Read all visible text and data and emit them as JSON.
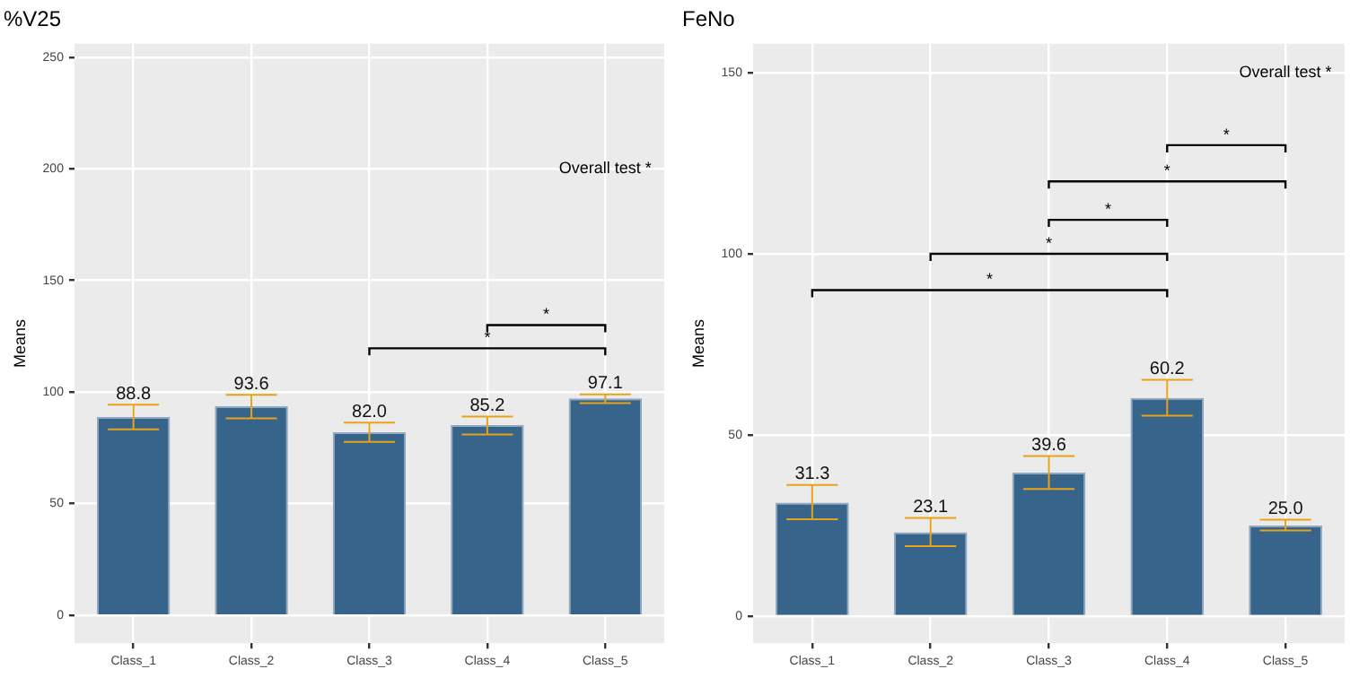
{
  "chart_data": [
    {
      "type": "bar",
      "title": "%V25",
      "ylabel": "Means",
      "categories": [
        "Class_1",
        "Class_2",
        "Class_3",
        "Class_4",
        "Class_5"
      ],
      "values": [
        88.8,
        93.6,
        82.0,
        85.2,
        97.1
      ],
      "value_labels": [
        "88.8",
        "93.6",
        "82.0",
        "85.2",
        "97.1"
      ],
      "errors": [
        [
          83.3,
          94.3
        ],
        [
          88.2,
          98.8
        ],
        [
          77.7,
          86.3
        ],
        [
          81.0,
          89.0
        ],
        [
          95.0,
          99.0
        ]
      ],
      "color": "#36648b",
      "ylim": [
        -12.5,
        256
      ],
      "yticks": [
        0,
        50,
        100,
        150,
        200,
        250
      ],
      "grid": true,
      "legend": false,
      "annotations": [
        "Overall test *",
        "*",
        "*"
      ]
    },
    {
      "type": "bar",
      "title": "FeNo",
      "ylabel": "Means",
      "categories": [
        "Class_1",
        "Class_2",
        "Class_3",
        "Class_4",
        "Class_5"
      ],
      "values": [
        31.3,
        23.1,
        39.6,
        60.2,
        25.0
      ],
      "value_labels": [
        "31.3",
        "23.1",
        "39.6",
        "60.2",
        "25.0"
      ],
      "errors": [
        [
          26.7,
          36.2
        ],
        [
          19.3,
          27.1
        ],
        [
          35.1,
          44.2
        ],
        [
          55.3,
          65.2
        ],
        [
          23.6,
          26.6
        ]
      ],
      "color": "#36648b",
      "ylim": [
        -7.5,
        158
      ],
      "yticks": [
        0,
        50,
        100,
        150
      ],
      "grid": true,
      "legend": false,
      "annotations": [
        "Overall test *",
        "*",
        "*",
        "*",
        "*",
        "*"
      ]
    }
  ]
}
